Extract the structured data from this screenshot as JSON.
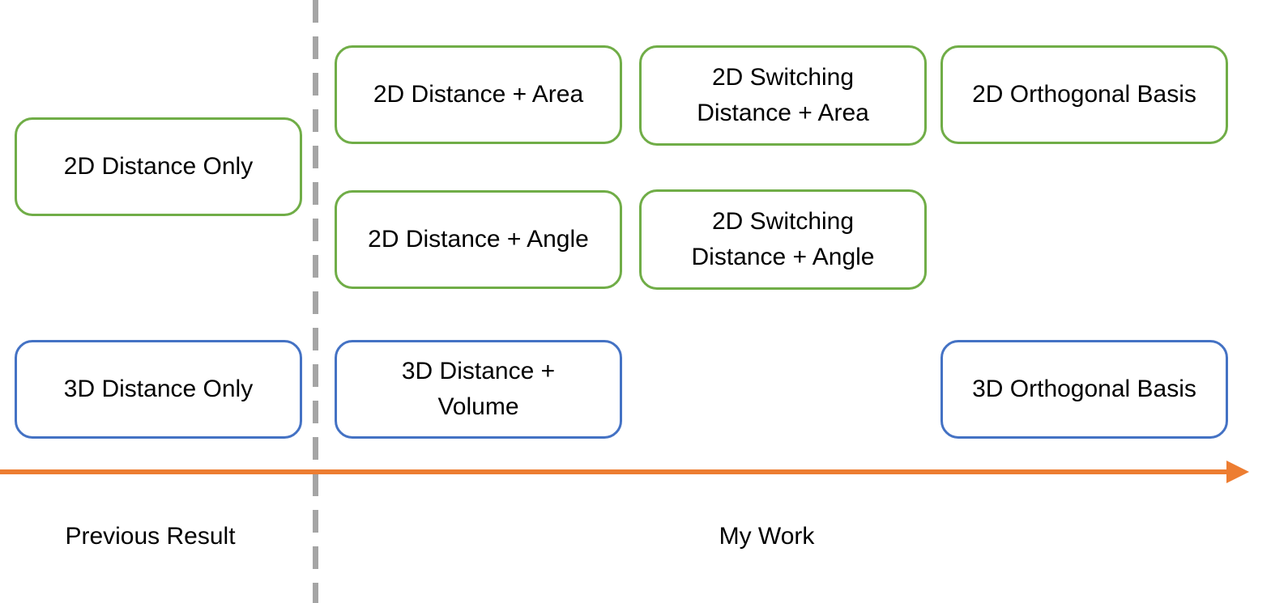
{
  "colors": {
    "green_border": "#70ad47",
    "blue_border": "#4472c4",
    "arrow": "#ed7d31",
    "divider": "#a5a5a5"
  },
  "boxes": {
    "prev_2d": "2D Distance Only",
    "prev_3d": "3D Distance Only",
    "dist_area_2d": "2D Distance + Area",
    "dist_angle_2d": "2D Distance + Angle",
    "switch_area_2d": "2D Switching\nDistance + Area",
    "switch_angle_2d": "2D Switching\nDistance + Angle",
    "ortho_2d": "2D Orthogonal Basis",
    "dist_volume_3d": "3D Distance +\nVolume",
    "ortho_3d": "3D Orthogonal Basis"
  },
  "labels": {
    "previous": "Previous Result",
    "mine": "My Work"
  }
}
